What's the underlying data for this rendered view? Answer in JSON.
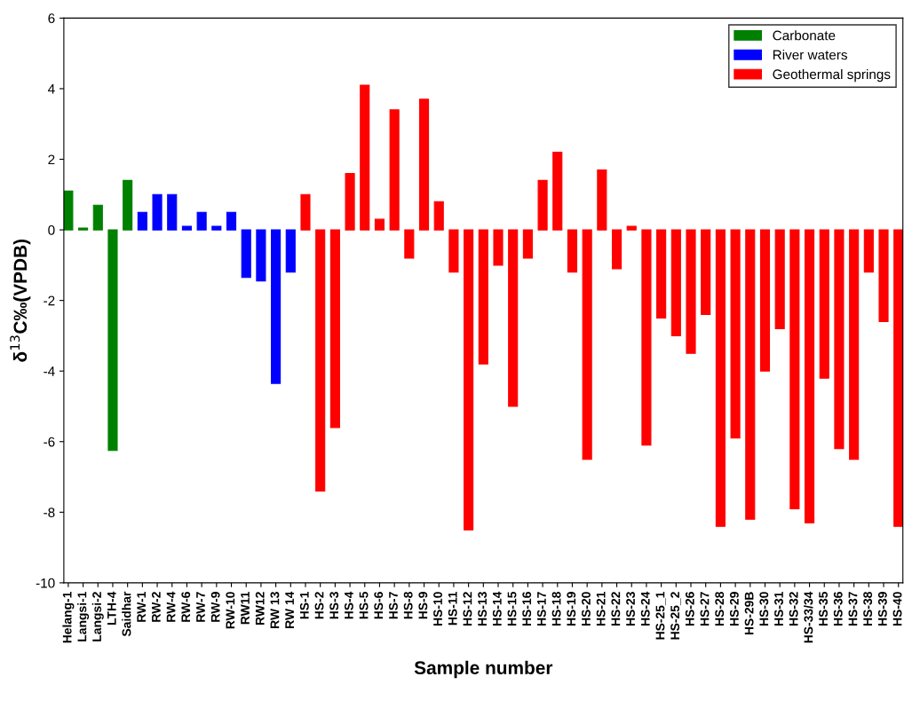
{
  "chart_data": {
    "type": "bar",
    "xlabel": "Sample number",
    "ylabel": "δ$^{13}$C‰(VPDB)",
    "categories": [
      "Helang-1",
      "Langsi-1",
      "Langsi-2",
      "LTH-4",
      "Saidhar",
      "RW-1",
      "RW-2",
      "RW-4",
      "RW-6",
      "RW-7",
      "RW-9",
      "RW-10",
      "RW11",
      "RW12",
      "RW 13",
      "RW 14",
      "HS-1",
      "HS-2",
      "HS-3",
      "HS-4",
      "HS-5",
      "HS-6",
      "HS-7",
      "HS-8",
      "HS-9",
      "HS-10",
      "HS-11",
      "HS-12",
      "HS-13",
      "HS-14",
      "HS-15",
      "HS-16",
      "HS-17",
      "HS-18",
      "HS-19",
      "HS-20",
      "HS-21",
      "HS-22",
      "HS-23",
      "HS-24",
      "HS-25_1",
      "HS-25_2",
      "HS-26",
      "HS-27",
      "HS-28",
      "HS-29",
      "HS-29B",
      "HS-30",
      "HS-31",
      "HS-32",
      "HS-33/34",
      "HS-35",
      "HS-36",
      "HS-37",
      "HS-38",
      "HS-39",
      "HS-40"
    ],
    "series": [
      {
        "name": "Carbonate",
        "color": "#008000",
        "values": [
          1.1,
          0.05,
          0.7,
          -6.25,
          1.4,
          null,
          null,
          null,
          null,
          null,
          null,
          null,
          null,
          null,
          null,
          null,
          null,
          null,
          null,
          null,
          null,
          null,
          null,
          null,
          null,
          null,
          null,
          null,
          null,
          null,
          null,
          null,
          null,
          null,
          null,
          null,
          null,
          null,
          null,
          null,
          null,
          null,
          null,
          null,
          null,
          null,
          null,
          null,
          null,
          null,
          null,
          null,
          null,
          null,
          null,
          null,
          null
        ]
      },
      {
        "name": "River waters",
        "color": "#0000ff",
        "values": [
          null,
          null,
          null,
          null,
          null,
          0.5,
          1.0,
          1.0,
          0.1,
          0.5,
          0.1,
          0.5,
          -1.35,
          -1.45,
          -4.35,
          -1.2,
          null,
          null,
          null,
          null,
          null,
          null,
          null,
          null,
          null,
          null,
          null,
          null,
          null,
          null,
          null,
          null,
          null,
          null,
          null,
          null,
          null,
          null,
          null,
          null,
          null,
          null,
          null,
          null,
          null,
          null,
          null,
          null,
          null,
          null,
          null,
          null,
          null,
          null,
          null,
          null,
          null
        ]
      },
      {
        "name": "Geothermal springs",
        "color": "#ff0000",
        "values": [
          null,
          null,
          null,
          null,
          null,
          null,
          null,
          null,
          null,
          null,
          null,
          null,
          null,
          null,
          null,
          null,
          1.0,
          -7.4,
          -5.6,
          1.6,
          4.1,
          0.3,
          3.4,
          -0.8,
          3.7,
          0.8,
          -1.2,
          -8.5,
          -3.8,
          -1.0,
          -5.0,
          -0.8,
          1.4,
          2.2,
          -1.2,
          -6.5,
          1.7,
          -1.1,
          0.1,
          -6.1,
          -2.5,
          -3.0,
          -3.5,
          -2.4,
          -8.4,
          -5.9,
          -8.2,
          -4.0,
          -2.8,
          -7.9,
          -8.3,
          -4.2,
          -6.2,
          -6.5,
          -1.2,
          -2.6,
          -8.4
        ]
      }
    ],
    "ylim": [
      -10,
      6
    ],
    "yticks": [
      -10,
      -8,
      -6,
      -4,
      -2,
      0,
      2,
      4,
      6
    ],
    "legend": "top right"
  }
}
